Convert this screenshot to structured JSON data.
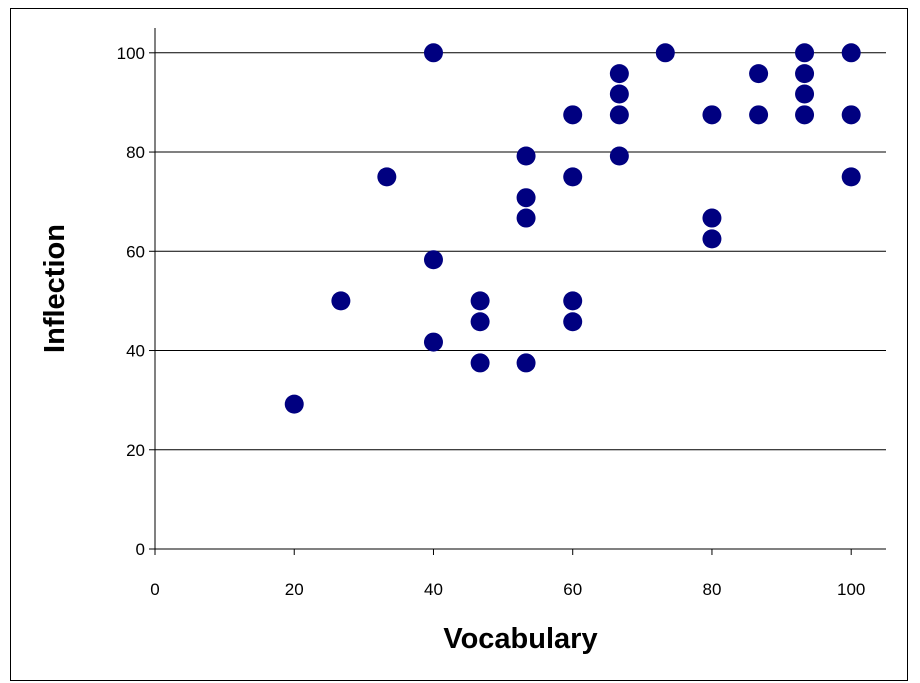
{
  "chart_data": {
    "type": "scatter",
    "title": "",
    "xlabel": "Vocabulary",
    "ylabel": "Inflection",
    "xlim": [
      0,
      105
    ],
    "ylim": [
      0,
      105
    ],
    "x_ticks": [
      0,
      20,
      40,
      60,
      80,
      100
    ],
    "y_ticks": [
      0,
      20,
      40,
      60,
      80,
      100
    ],
    "grid": "horizontal",
    "legend": "none",
    "marker_color": "#000080",
    "points": [
      {
        "x": 20,
        "y": 29.2
      },
      {
        "x": 26.7,
        "y": 50
      },
      {
        "x": 33.3,
        "y": 75
      },
      {
        "x": 40,
        "y": 100
      },
      {
        "x": 40,
        "y": 58.3
      },
      {
        "x": 40,
        "y": 41.7
      },
      {
        "x": 46.7,
        "y": 50
      },
      {
        "x": 46.7,
        "y": 45.8
      },
      {
        "x": 46.7,
        "y": 37.5
      },
      {
        "x": 53.3,
        "y": 79.2
      },
      {
        "x": 53.3,
        "y": 70.8
      },
      {
        "x": 53.3,
        "y": 66.7
      },
      {
        "x": 53.3,
        "y": 37.5
      },
      {
        "x": 60,
        "y": 87.5
      },
      {
        "x": 60,
        "y": 75
      },
      {
        "x": 60,
        "y": 50
      },
      {
        "x": 60,
        "y": 45.8
      },
      {
        "x": 66.7,
        "y": 95.8
      },
      {
        "x": 66.7,
        "y": 91.7
      },
      {
        "x": 66.7,
        "y": 87.5
      },
      {
        "x": 66.7,
        "y": 79.2
      },
      {
        "x": 73.3,
        "y": 100
      },
      {
        "x": 80,
        "y": 87.5
      },
      {
        "x": 80,
        "y": 66.7
      },
      {
        "x": 80,
        "y": 62.5
      },
      {
        "x": 86.7,
        "y": 95.8
      },
      {
        "x": 86.7,
        "y": 87.5
      },
      {
        "x": 93.3,
        "y": 100
      },
      {
        "x": 93.3,
        "y": 95.8
      },
      {
        "x": 93.3,
        "y": 91.7
      },
      {
        "x": 93.3,
        "y": 87.5
      },
      {
        "x": 100,
        "y": 100
      },
      {
        "x": 100,
        "y": 87.5
      },
      {
        "x": 100,
        "y": 75
      }
    ]
  }
}
